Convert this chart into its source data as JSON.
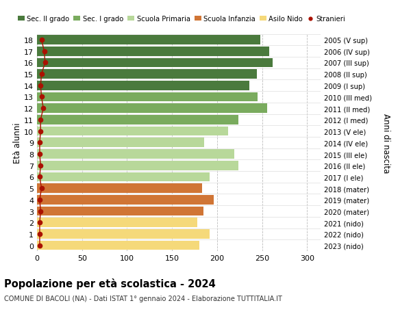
{
  "ages": [
    18,
    17,
    16,
    15,
    14,
    13,
    12,
    11,
    10,
    9,
    8,
    7,
    6,
    5,
    4,
    3,
    2,
    1,
    0
  ],
  "right_labels": [
    "2005 (V sup)",
    "2006 (IV sup)",
    "2007 (III sup)",
    "2008 (II sup)",
    "2009 (I sup)",
    "2010 (III med)",
    "2011 (II med)",
    "2012 (I med)",
    "2013 (V ele)",
    "2014 (IV ele)",
    "2015 (III ele)",
    "2016 (II ele)",
    "2017 (I ele)",
    "2018 (mater)",
    "2019 (mater)",
    "2020 (mater)",
    "2021 (nido)",
    "2022 (nido)",
    "2023 (nido)"
  ],
  "values": [
    248,
    258,
    262,
    244,
    236,
    245,
    256,
    224,
    212,
    186,
    219,
    224,
    192,
    183,
    196,
    185,
    178,
    192,
    180
  ],
  "stranieri": [
    5,
    8,
    9,
    5,
    4,
    5,
    7,
    4,
    4,
    3,
    3,
    4,
    3,
    5,
    3,
    4,
    3,
    3,
    3
  ],
  "bar_colors": [
    "#4a7a3d",
    "#4a7a3d",
    "#4a7a3d",
    "#4a7a3d",
    "#4a7a3d",
    "#7aab5e",
    "#7aab5e",
    "#7aab5e",
    "#b8d89a",
    "#b8d89a",
    "#b8d89a",
    "#b8d89a",
    "#b8d89a",
    "#d07535",
    "#d07535",
    "#d07535",
    "#f5d97a",
    "#f5d97a",
    "#f5d97a"
  ],
  "legend_labels": [
    "Sec. II grado",
    "Sec. I grado",
    "Scuola Primaria",
    "Scuola Infanzia",
    "Asilo Nido",
    "Stranieri"
  ],
  "legend_colors": [
    "#4a7a3d",
    "#7aab5e",
    "#b8d89a",
    "#d07535",
    "#f5d97a",
    "#aa1100"
  ],
  "xlabel_ticks": [
    0,
    50,
    100,
    150,
    200,
    250,
    300
  ],
  "xlim": [
    0,
    315
  ],
  "ylabel_left": "Età alunni",
  "ylabel_right": "Anni di nascita",
  "title": "Popolazione per età scolastica - 2024",
  "subtitle": "COMUNE DI BACOLI (NA) - Dati ISTAT 1° gennaio 2024 - Elaborazione TUTTITALIA.IT",
  "stranieri_color": "#aa1100",
  "bg_color": "#ffffff",
  "bar_height": 0.82
}
